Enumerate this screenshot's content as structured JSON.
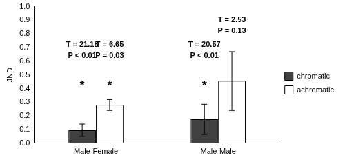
{
  "chart_data": {
    "type": "bar",
    "y_label": "JND",
    "categories": [
      "Male-Female",
      "Male-Male"
    ],
    "ylim": [
      0,
      1
    ],
    "yticks": [
      {
        "value": 0,
        "label": "0.0"
      },
      0.1,
      0.2,
      0.3,
      0.4,
      0.5,
      0.6,
      0.7,
      0.8,
      0.9,
      {
        "value": 1,
        "label": "1.0"
      }
    ],
    "grid": false,
    "legend": "right",
    "series": [
      {
        "name": "chromatic",
        "color": "#404040",
        "values": [
          0.095,
          0.175
        ],
        "errors": [
          0.045,
          0.11
        ],
        "annotations": [
          {
            "lines": [
              "T = 21.18",
              "P < 0.01"
            ],
            "significance": "*"
          },
          {
            "lines": [
              "T = 20.57",
              "P < 0.01"
            ],
            "significance": "*"
          }
        ]
      },
      {
        "name": "achromatic",
        "color": "#ffffff",
        "values": [
          0.28,
          0.455
        ],
        "errors": [
          0.04,
          0.215
        ],
        "annotations": [
          {
            "lines": [
              "T = 6.65",
              "P = 0.03"
            ],
            "significance": "*"
          },
          {
            "lines": [
              "T = 2.53",
              "P = 0.13"
            ]
          }
        ]
      }
    ]
  }
}
